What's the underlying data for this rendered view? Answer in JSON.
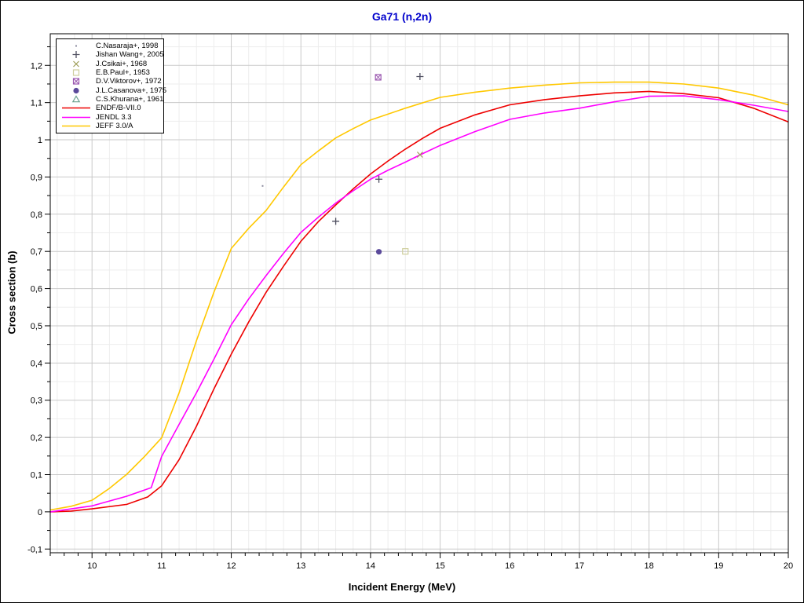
{
  "figure": {
    "title": "Ga71 (n,2n)",
    "title_color": "#0000cc",
    "xlabel": "Incident Energy (MeV)",
    "ylabel": "Cross section (b)"
  },
  "chart_data": {
    "type": "line",
    "title": "Ga71 (n,2n)",
    "xlabel": "Incident Energy (MeV)",
    "ylabel": "Cross section (b)",
    "xlim": [
      9.4,
      20
    ],
    "ylim": [
      -0.11,
      1.285
    ],
    "x_ticks": {
      "major_values": [
        10,
        11,
        12,
        13,
        14,
        15,
        16,
        17,
        18,
        19,
        20
      ],
      "major_labels": [
        "10",
        "11",
        "12",
        "13",
        "14",
        "15",
        "16",
        "17",
        "18",
        "19",
        "20"
      ],
      "minor_step": 0.2
    },
    "y_ticks": {
      "major_values": [
        -0.1,
        0,
        0.1,
        0.2,
        0.3,
        0.4,
        0.5,
        0.6,
        0.7,
        0.8,
        0.9,
        1.0,
        1.1,
        1.2
      ],
      "major_labels": [
        "-0,1",
        "0",
        "0,1",
        "0,2",
        "0,3",
        "0,4",
        "0,5",
        "0,6",
        "0,7",
        "0,8",
        "0,9",
        "1",
        "1,1",
        "1,2"
      ],
      "minor_step": 0.05
    },
    "grid": {
      "major_color": "#c9c9c9",
      "minor_color": "#ededed",
      "x_minor_step": 0.25,
      "y_minor_step": 0.05,
      "grid_on": true
    },
    "legend_position": "top-left",
    "scatter": [
      {
        "label": "C.Nasaraja+, 1998",
        "marker": "dot",
        "color": "#8d8da0",
        "points": [
          [
            12.45,
            0.876
          ]
        ]
      },
      {
        "label": "Jishan Wang+, 2005",
        "marker": "plus",
        "color": "#4f4f60",
        "points": [
          [
            13.5,
            0.781
          ],
          [
            14.12,
            0.894
          ],
          [
            14.71,
            1.17
          ]
        ]
      },
      {
        "label": "J.Csikai+, 1968",
        "marker": "x",
        "color": "#9c9c55",
        "points": [
          [
            14.71,
            0.96
          ]
        ]
      },
      {
        "label": "E.B.Paul+, 1953",
        "marker": "square-open",
        "color": "#cfcf9e",
        "points": [
          [
            14.5,
            0.7
          ]
        ]
      },
      {
        "label": "D.V.Viktorov+, 1972",
        "marker": "square-x",
        "color": "#9b59b0",
        "points": [
          [
            14.11,
            1.168
          ]
        ]
      },
      {
        "label": "J.L.Casanova+, 1975",
        "marker": "circle-filled",
        "color": "#5b4a9b",
        "points": [
          [
            14.12,
            0.699
          ]
        ]
      },
      {
        "label": "C.S.Khurana+, 1961",
        "marker": "triangle-open",
        "color": "#6aa08e",
        "points": []
      }
    ],
    "series": [
      {
        "name": "ENDF/B-VII.0",
        "color": "#ee0000",
        "points": [
          [
            9.4,
            0.0
          ],
          [
            9.7,
            0.002
          ],
          [
            10,
            0.008
          ],
          [
            10.5,
            0.02
          ],
          [
            10.8,
            0.04
          ],
          [
            11,
            0.07
          ],
          [
            11.25,
            0.14
          ],
          [
            11.5,
            0.23
          ],
          [
            11.75,
            0.33
          ],
          [
            12,
            0.424
          ],
          [
            12.25,
            0.51
          ],
          [
            12.5,
            0.59
          ],
          [
            12.75,
            0.66
          ],
          [
            13,
            0.727
          ],
          [
            13.25,
            0.78
          ],
          [
            13.5,
            0.825
          ],
          [
            13.75,
            0.868
          ],
          [
            14,
            0.908
          ],
          [
            14.25,
            0.943
          ],
          [
            14.5,
            0.975
          ],
          [
            14.75,
            1.004
          ],
          [
            15,
            1.031
          ],
          [
            15.5,
            1.067
          ],
          [
            16,
            1.094
          ],
          [
            16.5,
            1.108
          ],
          [
            17,
            1.118
          ],
          [
            17.5,
            1.126
          ],
          [
            18,
            1.13
          ],
          [
            18.5,
            1.124
          ],
          [
            19,
            1.113
          ],
          [
            19.5,
            1.085
          ],
          [
            20,
            1.048
          ]
        ]
      },
      {
        "name": "JENDL 3.3",
        "color": "#ff00ff",
        "points": [
          [
            9.4,
            0.0
          ],
          [
            10,
            0.016
          ],
          [
            10.5,
            0.042
          ],
          [
            10.85,
            0.065
          ],
          [
            11,
            0.149
          ],
          [
            11.25,
            0.235
          ],
          [
            11.5,
            0.32
          ],
          [
            11.75,
            0.41
          ],
          [
            12,
            0.503
          ],
          [
            12.25,
            0.572
          ],
          [
            12.5,
            0.635
          ],
          [
            12.75,
            0.695
          ],
          [
            13,
            0.751
          ],
          [
            13.25,
            0.792
          ],
          [
            13.5,
            0.83
          ],
          [
            13.75,
            0.863
          ],
          [
            14,
            0.894
          ],
          [
            14.25,
            0.918
          ],
          [
            14.5,
            0.94
          ],
          [
            14.75,
            0.963
          ],
          [
            15,
            0.985
          ],
          [
            15.5,
            1.022
          ],
          [
            16,
            1.055
          ],
          [
            16.5,
            1.072
          ],
          [
            17,
            1.085
          ],
          [
            17.5,
            1.102
          ],
          [
            18,
            1.117
          ],
          [
            18.5,
            1.118
          ],
          [
            19,
            1.108
          ],
          [
            19.5,
            1.093
          ],
          [
            20,
            1.076
          ]
        ]
      },
      {
        "name": "JEFF 3.0/A",
        "color": "#ffc800",
        "points": [
          [
            9.4,
            0.005
          ],
          [
            9.7,
            0.015
          ],
          [
            10,
            0.031
          ],
          [
            10.25,
            0.063
          ],
          [
            10.5,
            0.101
          ],
          [
            10.75,
            0.148
          ],
          [
            11,
            0.199
          ],
          [
            11.25,
            0.32
          ],
          [
            11.5,
            0.46
          ],
          [
            11.75,
            0.59
          ],
          [
            12,
            0.708
          ],
          [
            12.25,
            0.762
          ],
          [
            12.5,
            0.81
          ],
          [
            12.75,
            0.873
          ],
          [
            13,
            0.933
          ],
          [
            13.25,
            0.97
          ],
          [
            13.5,
            1.005
          ],
          [
            13.75,
            1.03
          ],
          [
            14,
            1.053
          ],
          [
            14.5,
            1.085
          ],
          [
            15,
            1.114
          ],
          [
            15.5,
            1.128
          ],
          [
            16,
            1.139
          ],
          [
            16.5,
            1.147
          ],
          [
            17,
            1.153
          ],
          [
            17.5,
            1.155
          ],
          [
            18,
            1.155
          ],
          [
            18.5,
            1.15
          ],
          [
            19,
            1.139
          ],
          [
            19.5,
            1.12
          ],
          [
            20,
            1.094
          ]
        ]
      }
    ]
  }
}
